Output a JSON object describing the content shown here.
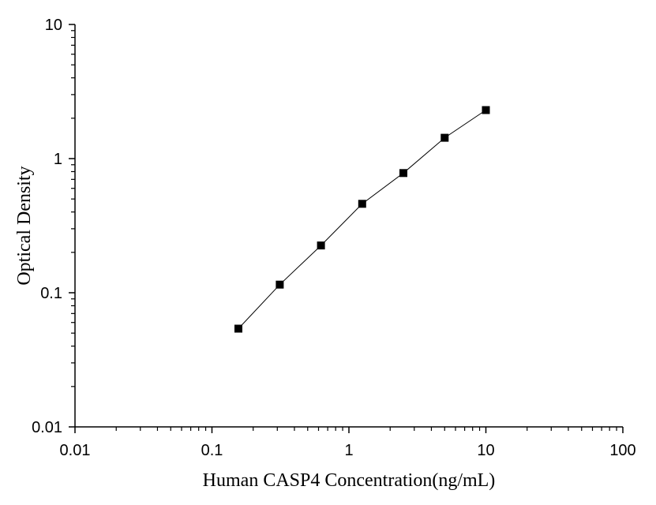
{
  "chart_data": {
    "type": "scatter",
    "title": "",
    "xlabel": "Human CASP4 Concentration(ng/mL)",
    "ylabel": "Optical Density",
    "x_scale": "log",
    "y_scale": "log",
    "xlim": [
      0.01,
      100
    ],
    "ylim": [
      0.01,
      10
    ],
    "x_ticks": [
      {
        "value": 0.01,
        "label": "0.01"
      },
      {
        "value": 0.1,
        "label": "0.1"
      },
      {
        "value": 1,
        "label": "1"
      },
      {
        "value": 10,
        "label": "10"
      },
      {
        "value": 100,
        "label": "100"
      }
    ],
    "y_ticks": [
      {
        "value": 0.01,
        "label": "0.01"
      },
      {
        "value": 0.1,
        "label": "0.1"
      },
      {
        "value": 1,
        "label": "1"
      },
      {
        "value": 10,
        "label": "10"
      }
    ],
    "grid": false,
    "legend": "none",
    "marker": "square",
    "line": true,
    "color": "#000000",
    "series": [
      {
        "x": [
          0.156,
          0.3125,
          0.625,
          1.25,
          2.5,
          5,
          10
        ],
        "y": [
          0.054,
          0.115,
          0.225,
          0.46,
          0.78,
          1.43,
          2.3
        ]
      }
    ]
  }
}
